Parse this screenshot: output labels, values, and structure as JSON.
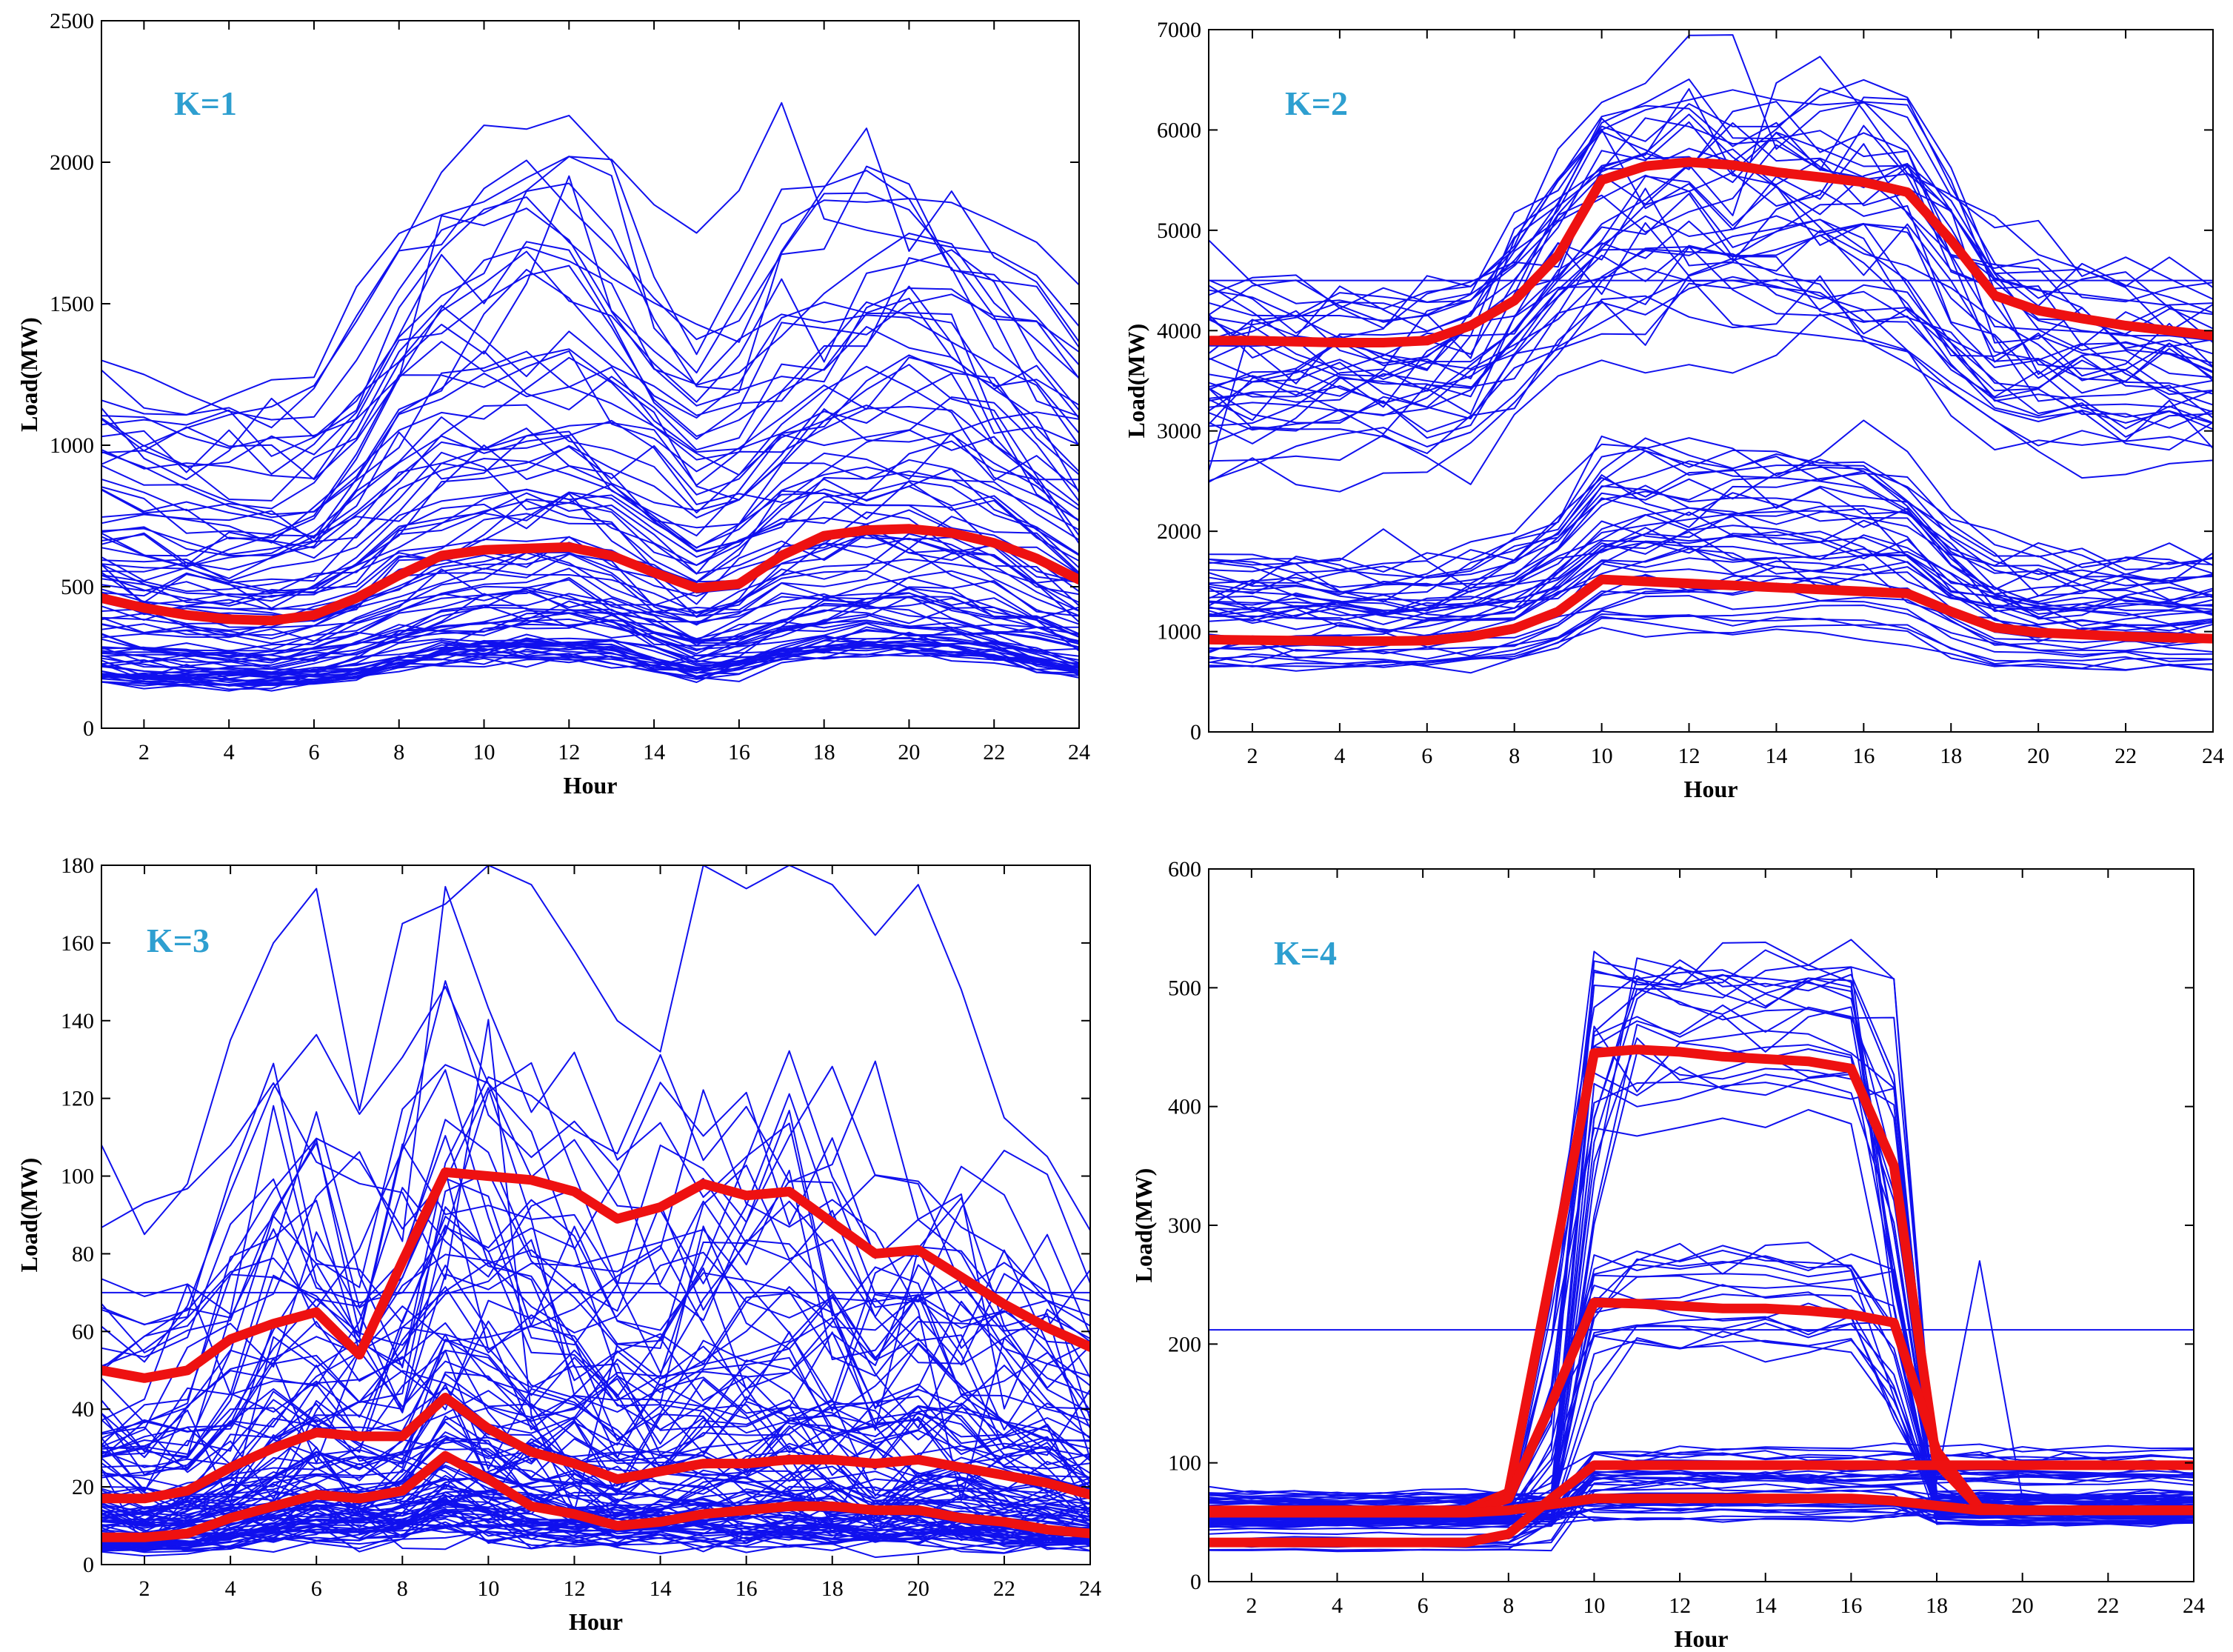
{
  "colors": {
    "sample": "#1010ee",
    "centroid": "#ee1111",
    "klabel": "#2e9fd0",
    "axis": "#000000"
  },
  "chart_data": [
    {
      "type": "line",
      "label": "K=1",
      "xlabel": "Hour",
      "ylabel": "Load(MW)",
      "xlim": [
        1,
        24
      ],
      "ylim": [
        0,
        2500
      ],
      "xticks": [
        2,
        4,
        6,
        8,
        10,
        12,
        14,
        16,
        18,
        20,
        22,
        24
      ],
      "yticks": [
        0,
        500,
        1000,
        1500,
        2000,
        2500
      ],
      "samples": {
        "count": 90,
        "seed": 11,
        "base": [
          300,
          285,
          275,
          270,
          268,
          280,
          320,
          380,
          420,
          440,
          445,
          450,
          430,
          380,
          330,
          360,
          420,
          450,
          470,
          475,
          460,
          430,
          380,
          330
        ],
        "scale_min": 0.6,
        "scale_max": 4.2,
        "skew": 2.6,
        "noise": 0.07,
        "extra": [
          [
            1300,
            1250,
            1180,
            1120,
            1090,
            1100,
            1300,
            1550,
            1760,
            1820,
            1900,
            2020,
            2010,
            1850,
            1750,
            1900,
            2210,
            1800,
            1760,
            1730,
            1700,
            1680,
            1600,
            1420
          ]
        ]
      },
      "centroids": [
        [
          460,
          425,
          400,
          385,
          380,
          400,
          460,
          540,
          610,
          630,
          635,
          640,
          610,
          550,
          495,
          510,
          610,
          680,
          700,
          705,
          690,
          655,
          600,
          525
        ]
      ]
    },
    {
      "type": "line",
      "label": "K=2",
      "xlabel": "Hour",
      "ylabel": "Load(MW)",
      "xlim": [
        1,
        24
      ],
      "ylim": [
        0,
        7000
      ],
      "xticks": [
        2,
        4,
        6,
        8,
        10,
        12,
        14,
        16,
        18,
        20,
        22,
        24
      ],
      "yticks": [
        0,
        1000,
        2000,
        3000,
        4000,
        5000,
        6000,
        7000
      ],
      "samples": {
        "count": 36,
        "seed": 22,
        "base": [
          3450,
          3450,
          3430,
          3420,
          3420,
          3440,
          3600,
          4100,
          4550,
          4900,
          5000,
          5050,
          5000,
          4950,
          4900,
          4850,
          4700,
          4200,
          3750,
          3600,
          3550,
          3500,
          3450,
          3420
        ],
        "scale_min": 0.78,
        "scale_max": 1.28,
        "skew": 1.0,
        "noise": 0.05,
        "extra": [
          [
            4500,
            4500,
            4500,
            4500,
            4500,
            4500,
            4500,
            4500,
            4500,
            4500,
            4500,
            4500,
            4500,
            4500,
            4500,
            4500,
            4500,
            4500,
            4500,
            4500,
            4500,
            4500,
            4500,
            4500
          ],
          [
            2600,
            4100,
            4150,
            4150,
            4100,
            4150,
            4300,
            4700,
            5200,
            6000,
            6200,
            6300,
            6400,
            6300,
            6250,
            6280,
            6250,
            5500,
            4400,
            4100,
            4000,
            3950,
            3950,
            3900
          ]
        ]
      },
      "samples2": {
        "count": 40,
        "seed": 23,
        "base": [
          1150,
          1140,
          1130,
          1130,
          1120,
          1130,
          1160,
          1250,
          1450,
          1800,
          1850,
          1850,
          1830,
          1800,
          1780,
          1760,
          1700,
          1400,
          1200,
          1150,
          1140,
          1130,
          1120,
          1110
        ],
        "scale_min": 0.55,
        "scale_max": 1.5,
        "skew": 1.0,
        "noise": 0.06
      },
      "centroids": [
        [
          3900,
          3900,
          3890,
          3880,
          3880,
          3900,
          4050,
          4300,
          4750,
          5500,
          5640,
          5680,
          5650,
          5580,
          5530,
          5480,
          5380,
          4900,
          4350,
          4200,
          4120,
          4050,
          4000,
          3950
        ],
        [
          920,
          915,
          910,
          905,
          905,
          910,
          950,
          1030,
          1200,
          1520,
          1500,
          1480,
          1460,
          1440,
          1420,
          1400,
          1380,
          1200,
          1040,
          990,
          970,
          950,
          940,
          930
        ]
      ]
    },
    {
      "type": "line",
      "label": "K=3",
      "xlabel": "Hour",
      "ylabel": "Load(MW)",
      "xlim": [
        1,
        24
      ],
      "ylim": [
        0,
        180
      ],
      "xticks": [
        2,
        4,
        6,
        8,
        10,
        12,
        14,
        16,
        18,
        20,
        22,
        24
      ],
      "yticks": [
        0,
        20,
        40,
        60,
        80,
        100,
        120,
        140,
        160,
        180
      ],
      "samples": {
        "count": 110,
        "seed": 33,
        "base": [
          16,
          15,
          16,
          20,
          24,
          27,
          26,
          27,
          36,
          32,
          28,
          26,
          23,
          24,
          25,
          25,
          26,
          25,
          24,
          25,
          23,
          21,
          19,
          17
        ],
        "scale_min": 0.3,
        "scale_max": 4.2,
        "skew": 2.3,
        "noise": 0.22,
        "extra": [
          [
            108,
            85,
            98,
            135,
            160,
            174,
            117,
            165,
            170,
            180,
            175,
            158,
            140,
            132,
            180,
            174,
            180,
            175,
            162,
            175,
            148,
            115,
            105,
            86
          ],
          [
            70,
            70,
            70,
            70,
            70,
            70,
            70,
            70,
            70,
            70,
            70,
            70,
            70,
            70,
            70,
            70,
            70,
            70,
            70,
            70,
            70,
            70,
            70,
            70
          ]
        ]
      },
      "centroids": [
        [
          50,
          48,
          50,
          58,
          62,
          65,
          54,
          78,
          101,
          100,
          99,
          96,
          89,
          92,
          98,
          95,
          96,
          88,
          80,
          81,
          74,
          67,
          61,
          56
        ],
        [
          17,
          17,
          19,
          25,
          30,
          34,
          33,
          33,
          43,
          35,
          29,
          26,
          22,
          24,
          26,
          26,
          27,
          27,
          26,
          27,
          25,
          23,
          21,
          18
        ],
        [
          7,
          7,
          8,
          12,
          15,
          18,
          17,
          19,
          28,
          22,
          15,
          13,
          10,
          11,
          13,
          14,
          15,
          15,
          14,
          14,
          12,
          11,
          9,
          8
        ]
      ]
    },
    {
      "type": "line",
      "label": "K=4",
      "xlabel": "Hour",
      "ylabel": "Load(MW)",
      "xlim": [
        1,
        24
      ],
      "ylim": [
        0,
        600
      ],
      "xticks": [
        2,
        4,
        6,
        8,
        10,
        12,
        14,
        16,
        18,
        20,
        22,
        24
      ],
      "yticks": [
        0,
        100,
        200,
        300,
        400,
        500,
        600
      ],
      "groups": [
        {
          "count": 22,
          "seed": 41,
          "pre": 62,
          "pre_spread": 14,
          "plat": 450,
          "plat_spread": 70,
          "post": 62,
          "post_spread": 14,
          "t_up": 9.9,
          "t_down": 17.8
        },
        {
          "count": 16,
          "seed": 42,
          "pre": 58,
          "pre_spread": 12,
          "plat": 232,
          "plat_spread": 40,
          "post": 60,
          "post_spread": 12,
          "t_up": 9.9,
          "t_down": 17.7
        },
        {
          "count": 18,
          "seed": 43,
          "pre": 42,
          "pre_spread": 18,
          "plat": 98,
          "plat_spread": 16,
          "post": 98,
          "post_spread": 16,
          "t_up": 9.8,
          "t_down": 30
        },
        {
          "count": 18,
          "seed": 44,
          "pre": 60,
          "pre_spread": 14,
          "plat": 68,
          "plat_spread": 18,
          "post": 62,
          "post_spread": 14,
          "t_up": 9.9,
          "t_down": 17.8
        }
      ],
      "extra": [
        [
          212,
          212,
          212,
          212,
          212,
          212,
          212,
          212,
          212,
          212,
          212,
          212,
          212,
          212,
          212,
          212,
          212,
          212,
          212,
          212,
          212,
          212,
          212,
          212
        ],
        [
          55,
          55,
          55,
          55,
          55,
          55,
          55,
          55,
          60,
          65,
          70,
          72,
          74,
          76,
          78,
          80,
          82,
          85,
          270,
          70,
          70,
          70,
          70,
          70
        ]
      ],
      "centroids": [
        [
          60,
          60,
          60,
          60,
          60,
          60,
          60,
          75,
          260,
          445,
          448,
          446,
          442,
          440,
          438,
          432,
          350,
          100,
          62,
          60,
          60,
          60,
          60,
          60
        ],
        [
          58,
          58,
          58,
          58,
          58,
          58,
          58,
          70,
          150,
          235,
          234,
          232,
          230,
          230,
          228,
          225,
          218,
          110,
          62,
          60,
          60,
          60,
          60,
          60
        ],
        [
          33,
          33,
          33,
          33,
          33,
          33,
          33,
          40,
          70,
          98,
          98,
          98,
          98,
          98,
          98,
          98,
          98,
          98,
          98,
          98,
          98,
          98,
          98,
          98
        ],
        [
          58,
          58,
          58,
          58,
          58,
          58,
          58,
          60,
          65,
          70,
          70,
          70,
          70,
          70,
          70,
          70,
          68,
          64,
          60,
          60,
          60,
          60,
          60,
          60
        ]
      ]
    }
  ]
}
